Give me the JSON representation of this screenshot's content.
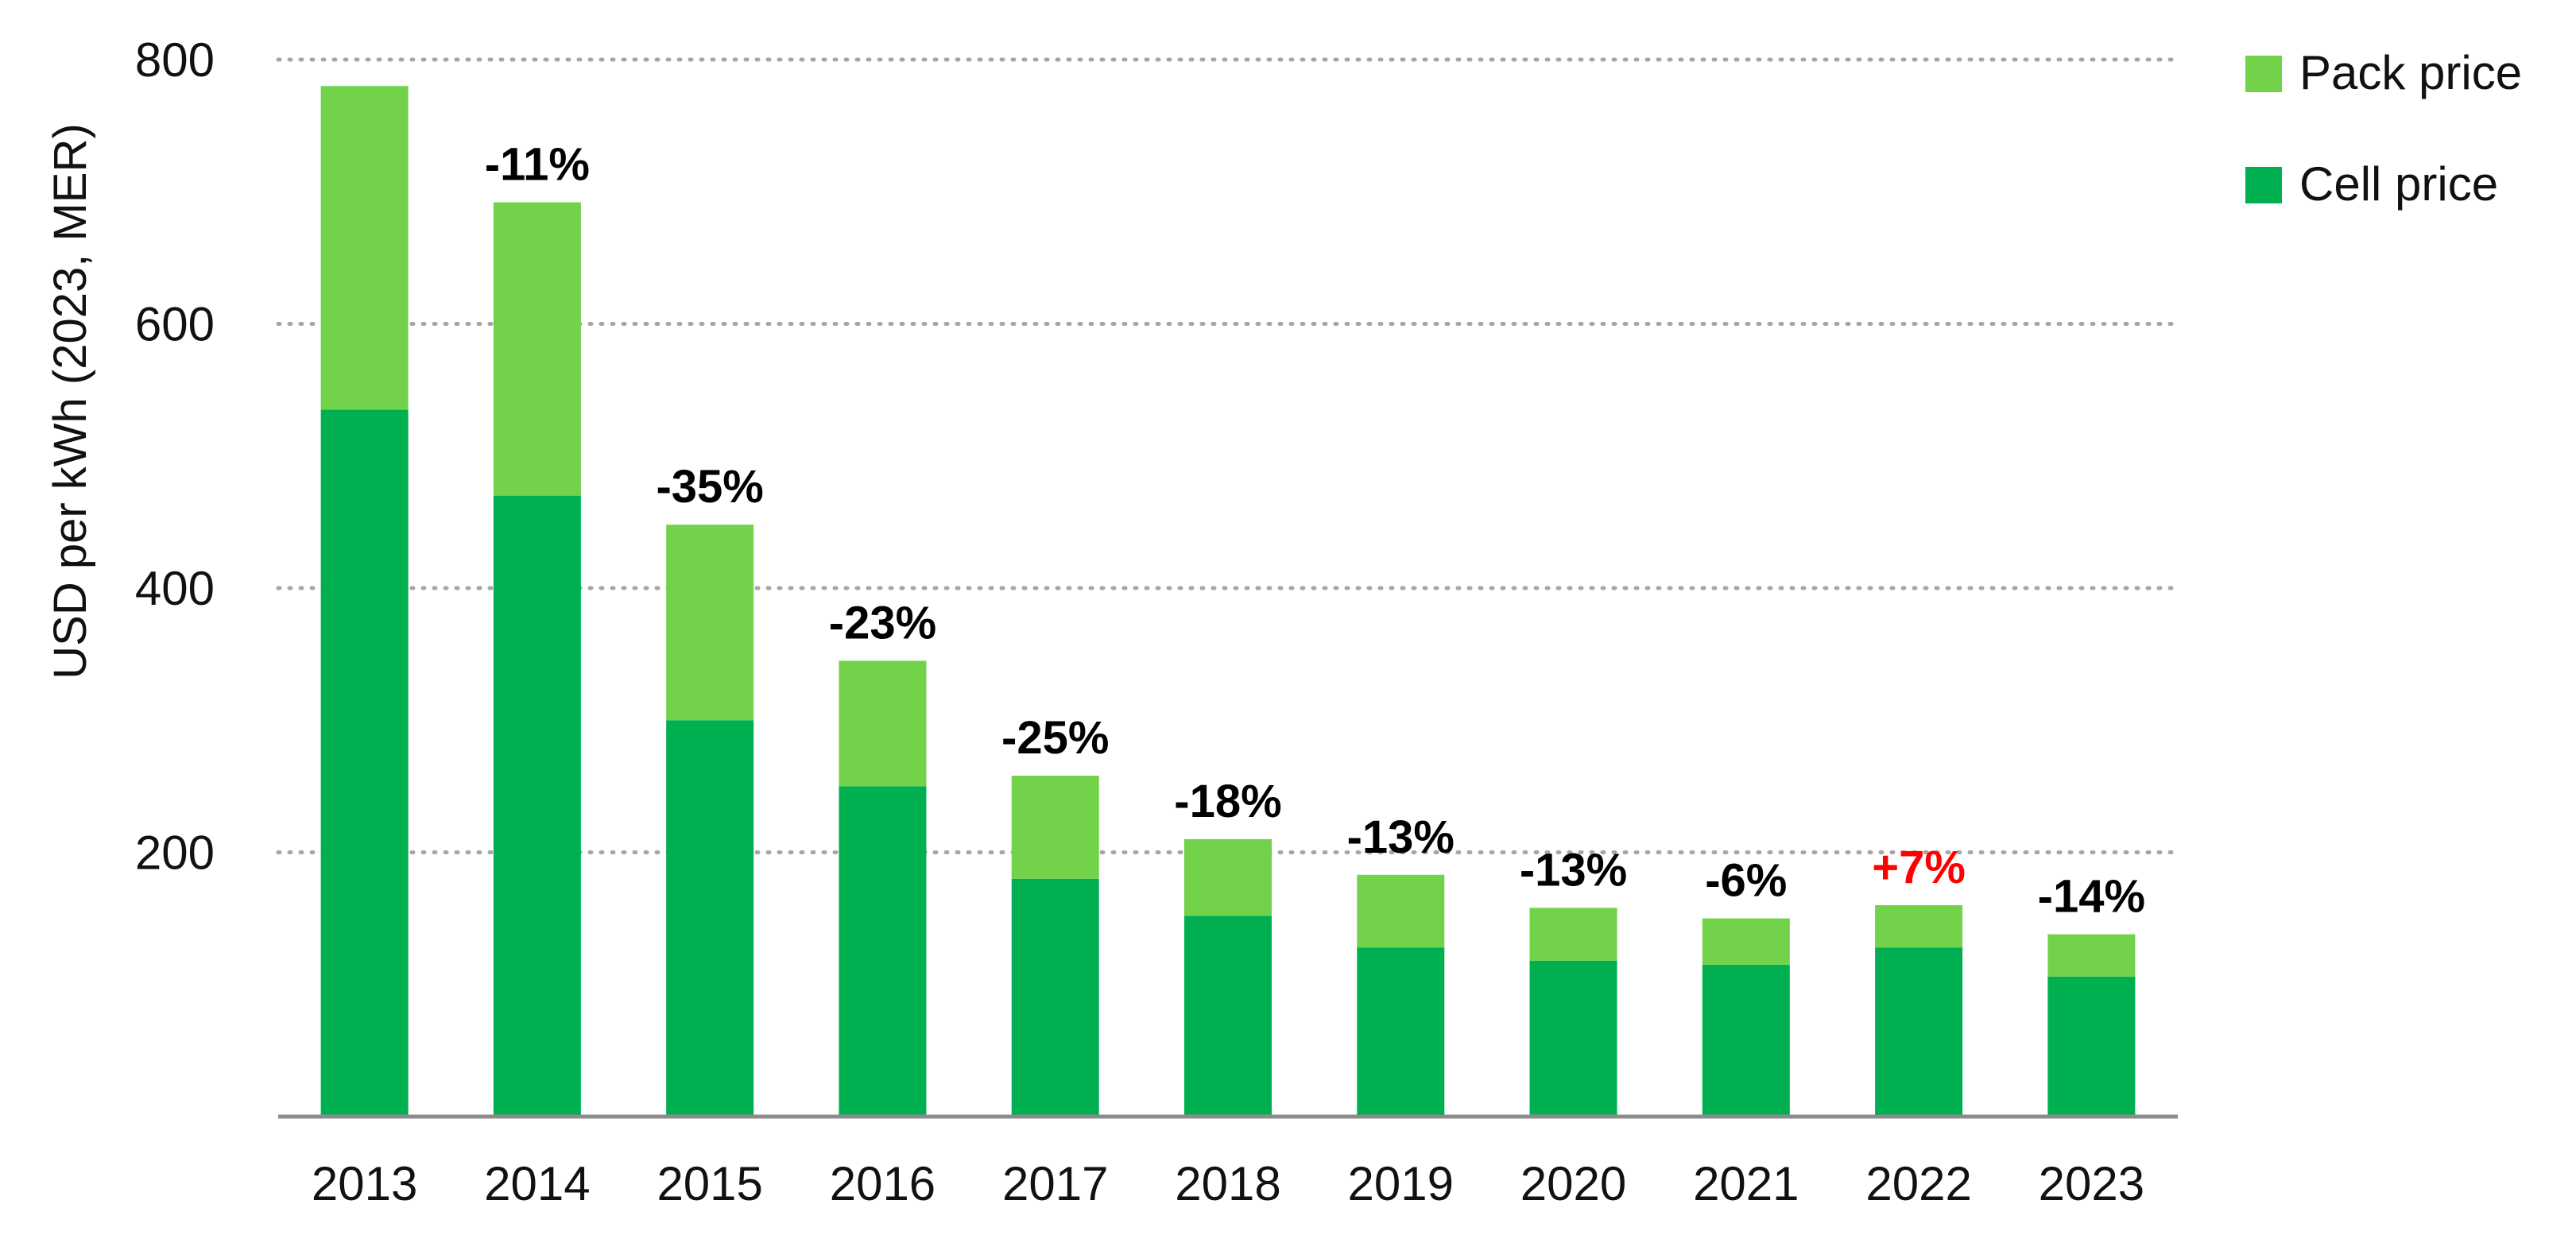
{
  "chart_data": {
    "type": "bar",
    "stacked": true,
    "categories": [
      "2013",
      "2014",
      "2015",
      "2016",
      "2017",
      "2018",
      "2019",
      "2020",
      "2021",
      "2022",
      "2023"
    ],
    "series": [
      {
        "name": "Cell price",
        "color": "#00b050",
        "values": [
          535,
          470,
          300,
          250,
          180,
          152,
          128,
          118,
          115,
          128,
          106
        ]
      },
      {
        "name": "Pack price",
        "color": "#72d24a",
        "values": [
          245,
          222,
          148,
          95,
          78,
          58,
          55,
          40,
          35,
          32,
          32
        ]
      }
    ],
    "totals": [
      780,
      692,
      448,
      345,
      258,
      210,
      183,
      158,
      150,
      160,
      138
    ],
    "change_labels": [
      "",
      "-11%",
      "-35%",
      "-23%",
      "-25%",
      "-18%",
      "-13%",
      "-13%",
      "-6%",
      "+7%",
      "-14%"
    ],
    "change_label_colors": [
      "#000000",
      "#000000",
      "#000000",
      "#000000",
      "#000000",
      "#000000",
      "#000000",
      "#000000",
      "#000000",
      "#ff0000",
      "#000000"
    ],
    "ylabel": "USD per kWh (2023, MER)",
    "xlabel": "",
    "title": "",
    "ylim": [
      0,
      800
    ],
    "yticks": [
      200,
      400,
      600,
      800
    ],
    "grid": true,
    "legend_position": "top-right",
    "legend_order": [
      "Pack price",
      "Cell price"
    ]
  }
}
